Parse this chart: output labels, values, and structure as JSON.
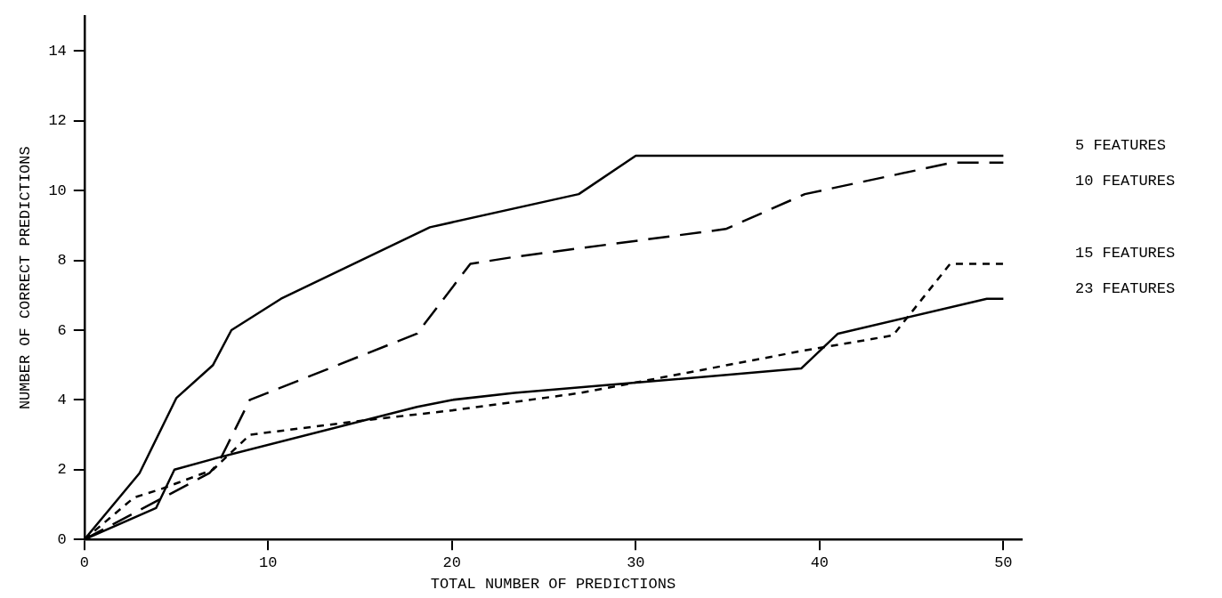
{
  "chart_data": {
    "type": "line",
    "xlabel": "TOTAL NUMBER OF PREDICTIONS",
    "ylabel": "NUMBER OF CORRECT PREDICTIONS",
    "xlim": [
      0,
      51
    ],
    "ylim": [
      0,
      15
    ],
    "xticks": [
      0,
      10,
      20,
      30,
      40,
      50
    ],
    "yticks": [
      0,
      2,
      4,
      6,
      8,
      10,
      12,
      14
    ],
    "grid": false,
    "legend": false,
    "marker": "none",
    "series": [
      {
        "name": "5 FEATURES",
        "color": "#000000",
        "line_style": "solid",
        "x": [
          0,
          3,
          5,
          7,
          8,
          10.7,
          18.8,
          26.9,
          30,
          50
        ],
        "values": [
          0,
          1.9,
          4.05,
          5,
          6,
          6.9,
          8.95,
          9.9,
          11,
          11
        ]
      },
      {
        "name": "10 FEATURES",
        "color": "#000000",
        "line_style": "dashed",
        "x": [
          0,
          6.8,
          7.3,
          9,
          18.1,
          21,
          23.4,
          34.9,
          39.2,
          47.2,
          50
        ],
        "values": [
          0,
          1.9,
          2.2,
          4,
          5.9,
          7.9,
          8.1,
          8.9,
          9.9,
          10.8,
          10.8
        ]
      },
      {
        "name": "15 FEATURES",
        "color": "#000000",
        "line_style": "dotted",
        "x": [
          0,
          2.7,
          4.2,
          7,
          9,
          15,
          20,
          27,
          30,
          39,
          44,
          47.1,
          50
        ],
        "values": [
          0,
          1.2,
          1.45,
          2,
          3,
          3.4,
          3.7,
          4.2,
          4.5,
          5.4,
          5.85,
          7.9,
          7.9
        ]
      },
      {
        "name": "23 FEATURES",
        "color": "#000000",
        "line_style": "solid",
        "x": [
          0,
          3.9,
          4.9,
          7.3,
          18.1,
          20,
          23.4,
          39,
          41,
          49.1,
          50
        ],
        "values": [
          0,
          0.9,
          2,
          2.35,
          3.8,
          4,
          4.2,
          4.9,
          5.9,
          6.9,
          6.9
        ]
      }
    ]
  }
}
